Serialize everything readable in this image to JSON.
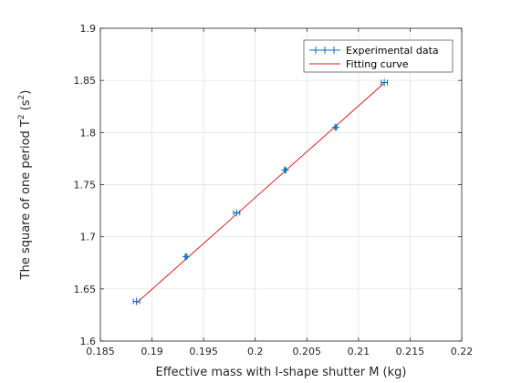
{
  "chart_data": {
    "type": "scatter",
    "xlabel": "Effective mass with I-shape shutter M (kg)",
    "ylabel_main": "The square of one period T",
    "ylabel_sup": "2",
    "ylabel_unit_open": " (s",
    "ylabel_unit_sup": "2",
    "ylabel_unit_close": ")",
    "xlim": [
      0.185,
      0.22
    ],
    "ylim": [
      1.6,
      1.9
    ],
    "x_ticks": [
      0.185,
      0.19,
      0.195,
      0.2,
      0.205,
      0.21,
      0.215,
      0.22
    ],
    "x_tick_labels": [
      "0.185",
      "0.19",
      "0.195",
      "0.2",
      "0.205",
      "0.21",
      "0.215",
      "0.22"
    ],
    "y_ticks": [
      1.6,
      1.65,
      1.7,
      1.75,
      1.8,
      1.85,
      1.9
    ],
    "y_tick_labels": [
      "1.6",
      "1.65",
      "1.7",
      "1.75",
      "1.8",
      "1.85",
      "1.9"
    ],
    "grid": true,
    "legend_position": "top-right",
    "series": [
      {
        "name": "Experimental data",
        "kind": "errorbar-points",
        "color": "#0072BD",
        "marker": "plus",
        "x": [
          0.1885,
          0.1933,
          0.1982,
          0.2029,
          0.2078,
          0.2125
        ],
        "y": [
          1.638,
          1.681,
          1.723,
          1.764,
          1.805,
          1.848
        ],
        "x_err": [
          0.0003,
          0.0001,
          0.0003,
          0.0001,
          0.0001,
          0.0003
        ]
      },
      {
        "name": "Fitting curve",
        "kind": "line",
        "color": "#D62020",
        "x": [
          0.1885,
          0.2125
        ],
        "y": [
          1.6365,
          1.8475
        ]
      }
    ]
  }
}
